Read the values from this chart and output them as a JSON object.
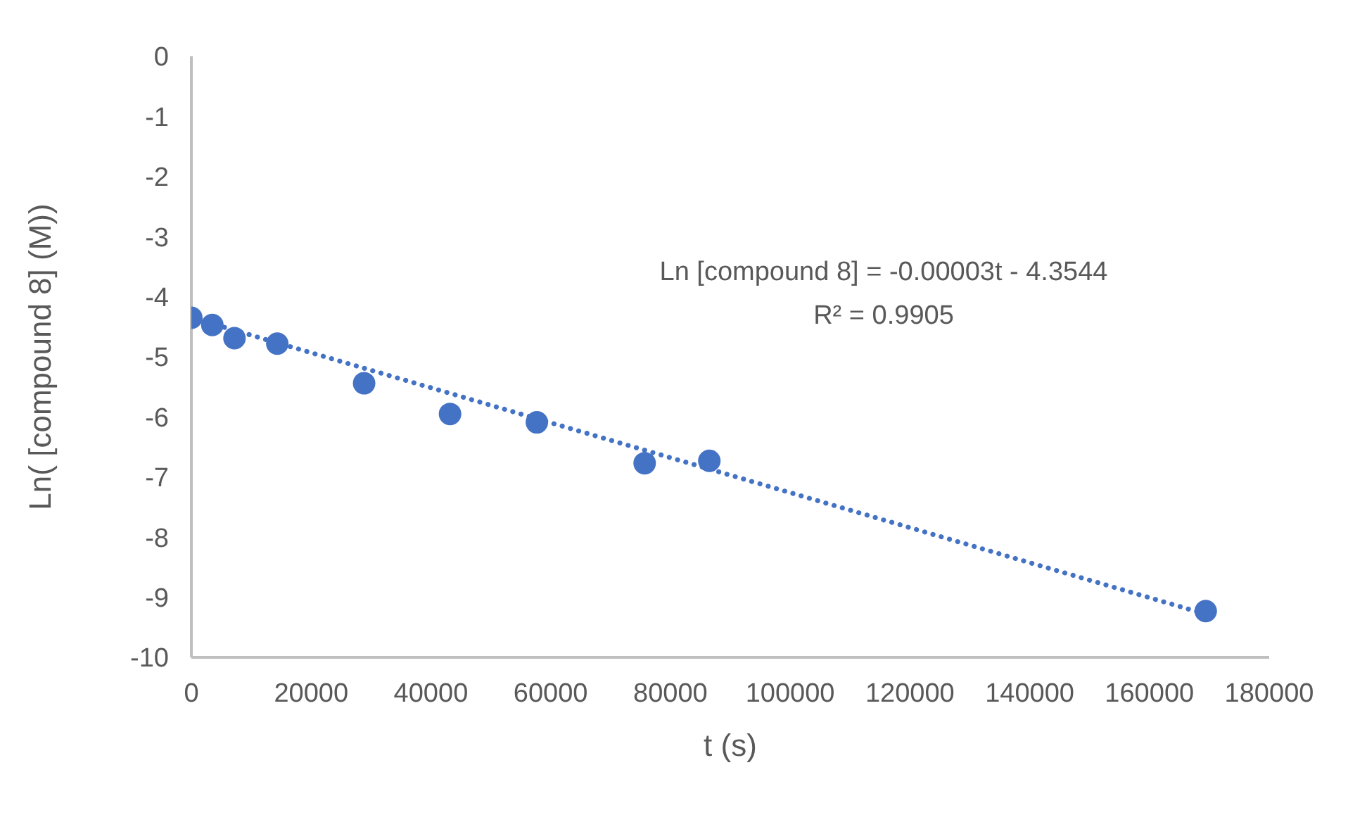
{
  "chart_data": {
    "type": "scatter",
    "xlabel": "t (s)",
    "ylabel": "Ln( [compound 8] (M))",
    "annotations": [
      "Ln [compound 8] = -0.00003t - 4.3544",
      "R² = 0.9905"
    ],
    "series": [
      {
        "type": "scatter",
        "x": [
          0,
          3500,
          7200,
          14350,
          28850,
          43200,
          57700,
          75700,
          86500,
          169400
        ],
        "values": [
          -4.35,
          -4.47,
          -4.69,
          -4.78,
          -5.44,
          -5.95,
          -6.09,
          -6.77,
          -6.73,
          -9.23
        ],
        "color": "#4472c4",
        "marker": "circle"
      },
      {
        "type": "line",
        "x": [
          0,
          169400
        ],
        "values": [
          -4.35,
          -9.28
        ],
        "color": "#4472c4",
        "line_style": "dotted",
        "marker": "none"
      }
    ],
    "xlim": [
      0,
      180000
    ],
    "xticks": [
      0,
      20000,
      40000,
      60000,
      80000,
      100000,
      120000,
      140000,
      160000,
      180000
    ],
    "ylim": [
      -10,
      0
    ],
    "yticks": [
      0,
      -1,
      -2,
      -3,
      -4,
      -5,
      -6,
      -7,
      -8,
      -9,
      -10
    ],
    "grid": false,
    "legend": false
  }
}
